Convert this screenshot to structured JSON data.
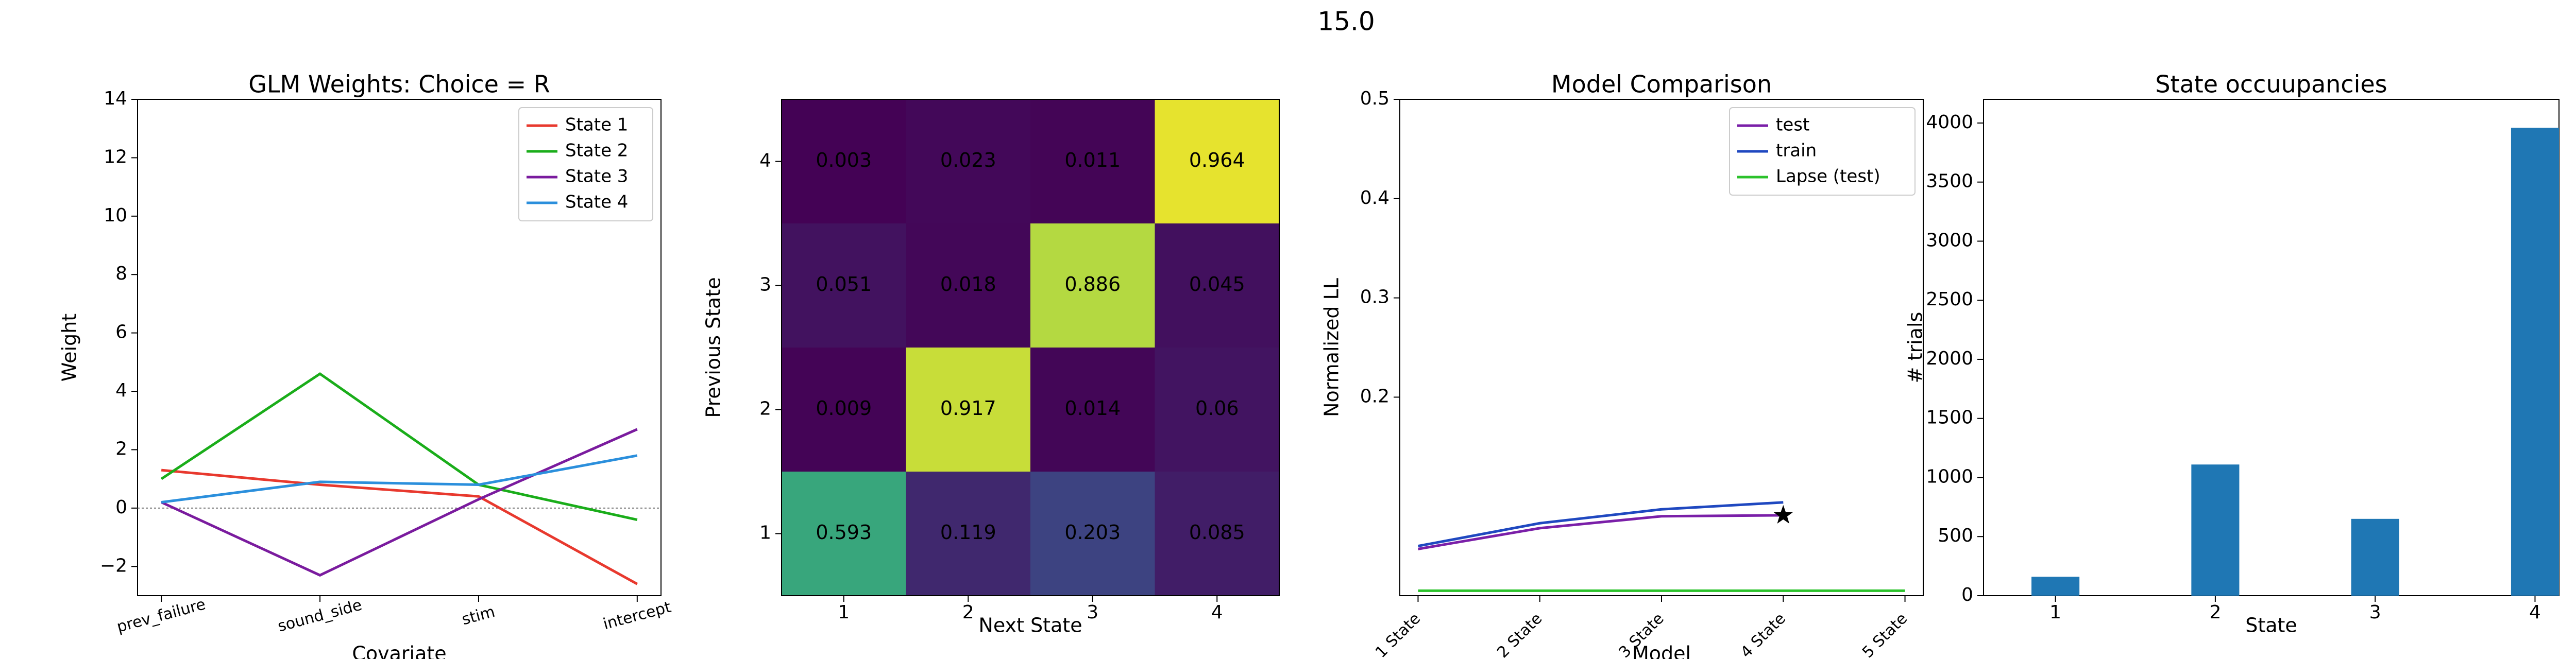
{
  "suptitle": "15.0",
  "chart_data": [
    {
      "type": "line",
      "title": "GLM Weights: Choice = R",
      "xlabel": "Covariate",
      "ylabel": "Weight",
      "categories": [
        "prev_failure",
        "sound_side",
        "stim",
        "intercept"
      ],
      "ylim": [
        -3,
        14
      ],
      "yticks": [
        {
          "value": -2,
          "label": "−2"
        },
        0,
        2,
        4,
        6,
        8,
        10,
        12,
        14
      ],
      "zero_line": true,
      "legend": "upper right",
      "xtick_rotation": -15,
      "series": [
        {
          "name": "State 1",
          "color": "#e8392e",
          "values": [
            1.3,
            0.8,
            0.4,
            -2.6
          ]
        },
        {
          "name": "State 2",
          "color": "#1aad1a",
          "values": [
            1.0,
            4.6,
            0.8,
            -0.4
          ]
        },
        {
          "name": "State 3",
          "color": "#7a1b9e",
          "values": [
            0.2,
            -2.3,
            0.3,
            2.7
          ]
        },
        {
          "name": "State 4",
          "color": "#2b8fdc",
          "values": [
            0.2,
            0.9,
            0.8,
            1.8
          ]
        }
      ]
    },
    {
      "type": "heatmap",
      "xlabel": "Next State",
      "ylabel": "Previous State",
      "xticks": [
        1,
        2,
        3,
        4
      ],
      "yticks": [
        1,
        2,
        3,
        4
      ],
      "colormap": "viridis",
      "vlim": [
        0,
        1
      ],
      "matrix": [
        [
          0.593,
          0.119,
          0.203,
          0.085
        ],
        [
          0.009,
          0.917,
          0.014,
          0.06
        ],
        [
          0.051,
          0.018,
          0.886,
          0.045
        ],
        [
          0.003,
          0.023,
          0.011,
          0.964
        ]
      ]
    },
    {
      "type": "line",
      "title": "Model Comparison",
      "xlabel": "Model",
      "ylabel": "Normalized LL",
      "categories": [
        "1 State",
        "2 State",
        "3 State",
        "4 State",
        "5 State"
      ],
      "ylim": [
        0,
        0.5
      ],
      "yticks": [
        0.2,
        0.3,
        0.4,
        0.5
      ],
      "legend": "upper right",
      "xtick_rotation": -45,
      "series": [
        {
          "name": "test",
          "color": "#7a1fa8",
          "values": [
            0.047,
            0.068,
            0.08,
            0.081,
            null
          ],
          "end_marker": "star"
        },
        {
          "name": "train",
          "color": "#1f48c0",
          "values": [
            0.05,
            0.073,
            0.087,
            0.094,
            null
          ]
        },
        {
          "name": "Lapse (test)",
          "color": "#2cc22c",
          "values": [
            0.005,
            0.005,
            0.005,
            0.005,
            0.005
          ]
        }
      ]
    },
    {
      "type": "bar",
      "title": "State occuupancies",
      "xlabel": "State",
      "ylabel": "# trials",
      "x": [
        1,
        2,
        3,
        4
      ],
      "values": [
        160,
        1110,
        650,
        3960
      ],
      "color": "#1f77b4",
      "xlim": [
        0.55,
        4.15
      ],
      "xticks": [
        1,
        2,
        3,
        4
      ],
      "ylim": [
        0,
        4200
      ],
      "yticks": [
        0,
        500,
        1000,
        1500,
        2000,
        2500,
        3000,
        3500,
        4000
      ]
    }
  ]
}
